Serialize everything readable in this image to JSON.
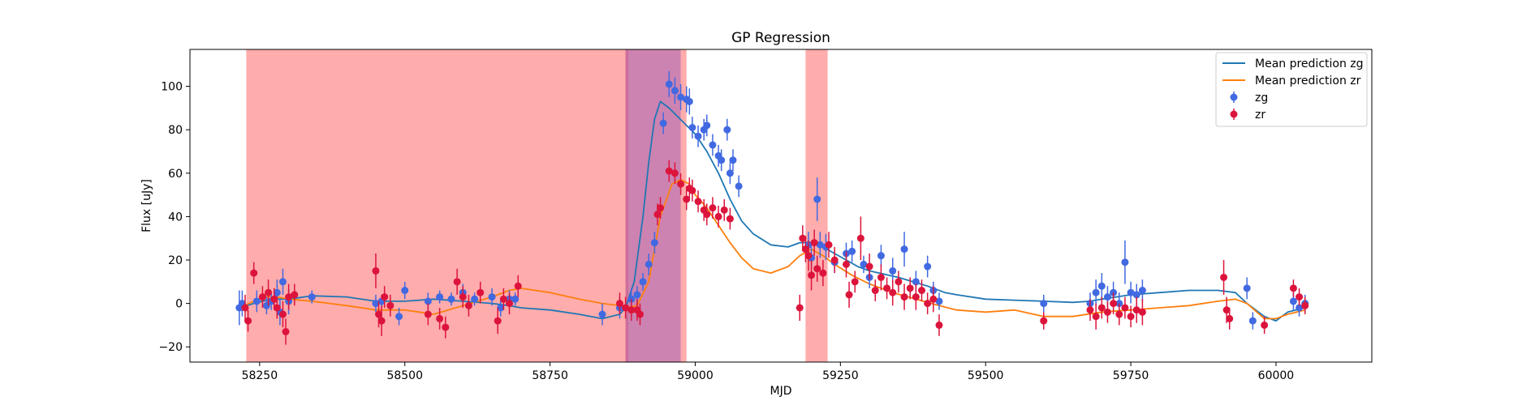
{
  "chart_data": {
    "type": "scatter",
    "title": "GP Regression",
    "xlabel": "MJD",
    "ylabel": "Flux [uJy]",
    "xlim": [
      58130,
      60165
    ],
    "ylim": [
      -27,
      117
    ],
    "xticks": [
      58250,
      58500,
      58750,
      59000,
      59250,
      59500,
      59750,
      60000
    ],
    "yticks": [
      -20,
      0,
      20,
      40,
      60,
      80,
      100
    ],
    "legend_position": "top-right",
    "shaded_regions": [
      {
        "x0": 58227,
        "x1": 58885,
        "color": "#ff5a5a"
      },
      {
        "x0": 58880,
        "x1": 58985,
        "color": "#ff5a5a"
      },
      {
        "x0": 58880,
        "x1": 58975,
        "color": "#9b59b6"
      },
      {
        "x0": 59190,
        "x1": 59228,
        "color": "#ff5a5a"
      }
    ],
    "series": [
      {
        "name": "Mean prediction zg",
        "kind": "line",
        "color": "#1f77b4",
        "x": [
          58215,
          58240,
          58270,
          58300,
          58340,
          58400,
          58450,
          58500,
          58550,
          58600,
          58650,
          58680,
          58700,
          58750,
          58800,
          58840,
          58870,
          58880,
          58895,
          58910,
          58920,
          58930,
          58940,
          58955,
          58970,
          58985,
          59000,
          59020,
          59040,
          59060,
          59080,
          59100,
          59130,
          59160,
          59180,
          59200,
          59220,
          59240,
          59260,
          59280,
          59300,
          59350,
          59400,
          59430,
          59450,
          59500,
          59550,
          59600,
          59650,
          59680,
          59700,
          59750,
          59800,
          59850,
          59900,
          59930,
          59950,
          59980,
          60000,
          60020,
          60050
        ],
        "y": [
          -2,
          0,
          2,
          2,
          3.5,
          3,
          1,
          1,
          2,
          1,
          0,
          -1,
          -2,
          -3,
          -5,
          -7,
          -5,
          -2,
          10,
          40,
          65,
          85,
          93,
          90,
          86,
          82,
          78,
          70,
          60,
          48,
          38,
          32,
          27,
          26,
          28,
          28,
          26,
          23,
          20,
          17,
          15,
          12,
          8,
          5,
          4,
          2,
          1.5,
          1,
          0.5,
          1,
          2,
          4,
          5,
          6,
          6,
          5,
          0,
          -6,
          -8,
          -4,
          -2
        ]
      },
      {
        "name": "Mean prediction zr",
        "kind": "line",
        "color": "#ff7f0e",
        "x": [
          58215,
          58240,
          58260,
          58280,
          58300,
          58340,
          58400,
          58450,
          58500,
          58550,
          58600,
          58650,
          58680,
          58700,
          58750,
          58800,
          58840,
          58870,
          58880,
          58900,
          58920,
          58940,
          58960,
          58975,
          58990,
          59000,
          59020,
          59040,
          59060,
          59080,
          59100,
          59130,
          59160,
          59180,
          59200,
          59220,
          59240,
          59270,
          59300,
          59340,
          59380,
          59420,
          59450,
          59500,
          59550,
          59600,
          59650,
          59700,
          59750,
          59800,
          59850,
          59900,
          59930,
          59950,
          59980,
          60000,
          60020,
          60050
        ],
        "y": [
          -2,
          1,
          3,
          3,
          2,
          1,
          -1,
          -3,
          -3,
          -5,
          -1,
          3,
          6,
          7,
          5,
          2,
          0,
          -1,
          -2,
          -1,
          10,
          40,
          55,
          57,
          55,
          50,
          44,
          36,
          28,
          21,
          16,
          14,
          17,
          22,
          25,
          22,
          18,
          13,
          9,
          5,
          2,
          -1,
          -3,
          -4,
          -3,
          -6,
          -6,
          -4,
          -3,
          -2,
          -1,
          1,
          2,
          0,
          -7,
          -7,
          -5,
          -3
        ]
      },
      {
        "name": "zg",
        "kind": "errorbar",
        "color": "#4169e1",
        "points": [
          [
            58215,
            -2,
            8
          ],
          [
            58220,
            0,
            6
          ],
          [
            58245,
            1,
            5
          ],
          [
            58262,
            -1,
            4
          ],
          [
            58270,
            1,
            4
          ],
          [
            58280,
            5,
            6
          ],
          [
            58285,
            -4,
            6
          ],
          [
            58290,
            10,
            6
          ],
          [
            58300,
            1,
            6
          ],
          [
            58340,
            3,
            3
          ],
          [
            58450,
            0,
            4
          ],
          [
            58460,
            1,
            3
          ],
          [
            58490,
            -6,
            4
          ],
          [
            58500,
            6,
            4
          ],
          [
            58540,
            1,
            4
          ],
          [
            58560,
            3,
            3
          ],
          [
            58580,
            2,
            3
          ],
          [
            58600,
            5,
            4
          ],
          [
            58620,
            2,
            3
          ],
          [
            58650,
            3,
            4
          ],
          [
            58665,
            -2,
            4
          ],
          [
            58680,
            2,
            4
          ],
          [
            58690,
            2,
            3
          ],
          [
            58840,
            -5,
            5
          ],
          [
            58870,
            -2,
            5
          ],
          [
            58890,
            2,
            5
          ],
          [
            58900,
            4,
            4
          ],
          [
            58910,
            10,
            4
          ],
          [
            58920,
            18,
            5
          ],
          [
            58930,
            28,
            5
          ],
          [
            58945,
            83,
            5
          ],
          [
            58955,
            101,
            6
          ],
          [
            58965,
            98,
            6
          ],
          [
            58975,
            95,
            6
          ],
          [
            58985,
            94,
            6
          ],
          [
            58990,
            93,
            6
          ],
          [
            58995,
            81,
            5
          ],
          [
            59005,
            77,
            5
          ],
          [
            59015,
            80,
            5
          ],
          [
            59020,
            82,
            5
          ],
          [
            59030,
            73,
            5
          ],
          [
            59040,
            68,
            5
          ],
          [
            59045,
            66,
            5
          ],
          [
            59055,
            80,
            5
          ],
          [
            59060,
            60,
            5
          ],
          [
            59065,
            66,
            5
          ],
          [
            59075,
            54,
            5
          ],
          [
            59195,
            27,
            6
          ],
          [
            59200,
            21,
            5
          ],
          [
            59210,
            48,
            10
          ],
          [
            59215,
            27,
            6
          ],
          [
            59225,
            26,
            6
          ],
          [
            59240,
            19,
            5
          ],
          [
            59260,
            23,
            5
          ],
          [
            59270,
            24,
            5
          ],
          [
            59290,
            18,
            4
          ],
          [
            59300,
            12,
            5
          ],
          [
            59320,
            22,
            5
          ],
          [
            59340,
            15,
            6
          ],
          [
            59360,
            25,
            8
          ],
          [
            59380,
            10,
            5
          ],
          [
            59400,
            17,
            5
          ],
          [
            59410,
            6,
            4
          ],
          [
            59420,
            1,
            4
          ],
          [
            59600,
            0,
            4
          ],
          [
            59680,
            0,
            5
          ],
          [
            59690,
            5,
            6
          ],
          [
            59700,
            8,
            6
          ],
          [
            59710,
            3,
            5
          ],
          [
            59720,
            5,
            5
          ],
          [
            59730,
            0,
            5
          ],
          [
            59740,
            19,
            10
          ],
          [
            59750,
            5,
            5
          ],
          [
            59760,
            4,
            5
          ],
          [
            59770,
            6,
            5
          ],
          [
            59950,
            7,
            5
          ],
          [
            59960,
            -8,
            4
          ],
          [
            60030,
            1,
            4
          ],
          [
            60040,
            -2,
            4
          ],
          [
            60050,
            0,
            4
          ]
        ]
      },
      {
        "name": "zr",
        "kind": "errorbar",
        "color": "#dc143c",
        "points": [
          [
            58225,
            -2,
            6
          ],
          [
            58230,
            -8,
            5
          ],
          [
            58240,
            14,
            5
          ],
          [
            58255,
            3,
            5
          ],
          [
            58265,
            5,
            6
          ],
          [
            58275,
            2,
            5
          ],
          [
            58280,
            -2,
            5
          ],
          [
            58290,
            -5,
            6
          ],
          [
            58295,
            -13,
            6
          ],
          [
            58300,
            3,
            6
          ],
          [
            58310,
            4,
            5
          ],
          [
            58450,
            15,
            8
          ],
          [
            58455,
            -5,
            6
          ],
          [
            58460,
            -8,
            7
          ],
          [
            58465,
            3,
            5
          ],
          [
            58475,
            -1,
            5
          ],
          [
            58540,
            -5,
            5
          ],
          [
            58560,
            -7,
            5
          ],
          [
            58570,
            -11,
            5
          ],
          [
            58590,
            10,
            6
          ],
          [
            58600,
            3,
            5
          ],
          [
            58610,
            -1,
            5
          ],
          [
            58630,
            5,
            5
          ],
          [
            58660,
            -8,
            6
          ],
          [
            58670,
            2,
            5
          ],
          [
            58680,
            0,
            5
          ],
          [
            58695,
            8,
            5
          ],
          [
            58870,
            0,
            5
          ],
          [
            58880,
            -2,
            5
          ],
          [
            58890,
            -3,
            5
          ],
          [
            58900,
            -3,
            5
          ],
          [
            58905,
            -5,
            5
          ],
          [
            58935,
            41,
            5
          ],
          [
            58940,
            44,
            5
          ],
          [
            58955,
            61,
            5
          ],
          [
            58965,
            60,
            5
          ],
          [
            58975,
            55,
            5
          ],
          [
            58985,
            48,
            5
          ],
          [
            58990,
            53,
            5
          ],
          [
            58995,
            52,
            5
          ],
          [
            59005,
            47,
            5
          ],
          [
            59015,
            43,
            5
          ],
          [
            59020,
            41,
            5
          ],
          [
            59030,
            44,
            5
          ],
          [
            59040,
            40,
            5
          ],
          [
            59050,
            43,
            5
          ],
          [
            59060,
            39,
            5
          ],
          [
            59180,
            -2,
            6
          ],
          [
            59185,
            30,
            6
          ],
          [
            59190,
            25,
            6
          ],
          [
            59195,
            22,
            7
          ],
          [
            59200,
            13,
            7
          ],
          [
            59205,
            28,
            6
          ],
          [
            59210,
            16,
            6
          ],
          [
            59220,
            14,
            6
          ],
          [
            59230,
            27,
            6
          ],
          [
            59240,
            20,
            6
          ],
          [
            59260,
            18,
            6
          ],
          [
            59265,
            4,
            6
          ],
          [
            59275,
            10,
            5
          ],
          [
            59285,
            30,
            10
          ],
          [
            59300,
            17,
            6
          ],
          [
            59310,
            6,
            5
          ],
          [
            59320,
            12,
            6
          ],
          [
            59330,
            7,
            5
          ],
          [
            59340,
            5,
            6
          ],
          [
            59350,
            10,
            5
          ],
          [
            59360,
            3,
            6
          ],
          [
            59370,
            7,
            5
          ],
          [
            59380,
            3,
            6
          ],
          [
            59390,
            6,
            5
          ],
          [
            59400,
            0,
            5
          ],
          [
            59410,
            2,
            6
          ],
          [
            59420,
            -10,
            5
          ],
          [
            59600,
            -8,
            4
          ],
          [
            59680,
            -3,
            5
          ],
          [
            59690,
            -6,
            6
          ],
          [
            59700,
            -2,
            5
          ],
          [
            59710,
            -4,
            5
          ],
          [
            59720,
            0,
            5
          ],
          [
            59730,
            -5,
            5
          ],
          [
            59740,
            -2,
            5
          ],
          [
            59750,
            -6,
            5
          ],
          [
            59760,
            -3,
            6
          ],
          [
            59770,
            -4,
            6
          ],
          [
            59910,
            12,
            8
          ],
          [
            59915,
            -3,
            6
          ],
          [
            59920,
            -7,
            5
          ],
          [
            59980,
            -10,
            4
          ],
          [
            60030,
            7,
            4
          ],
          [
            60040,
            3,
            4
          ],
          [
            60050,
            -1,
            4
          ]
        ]
      }
    ]
  }
}
